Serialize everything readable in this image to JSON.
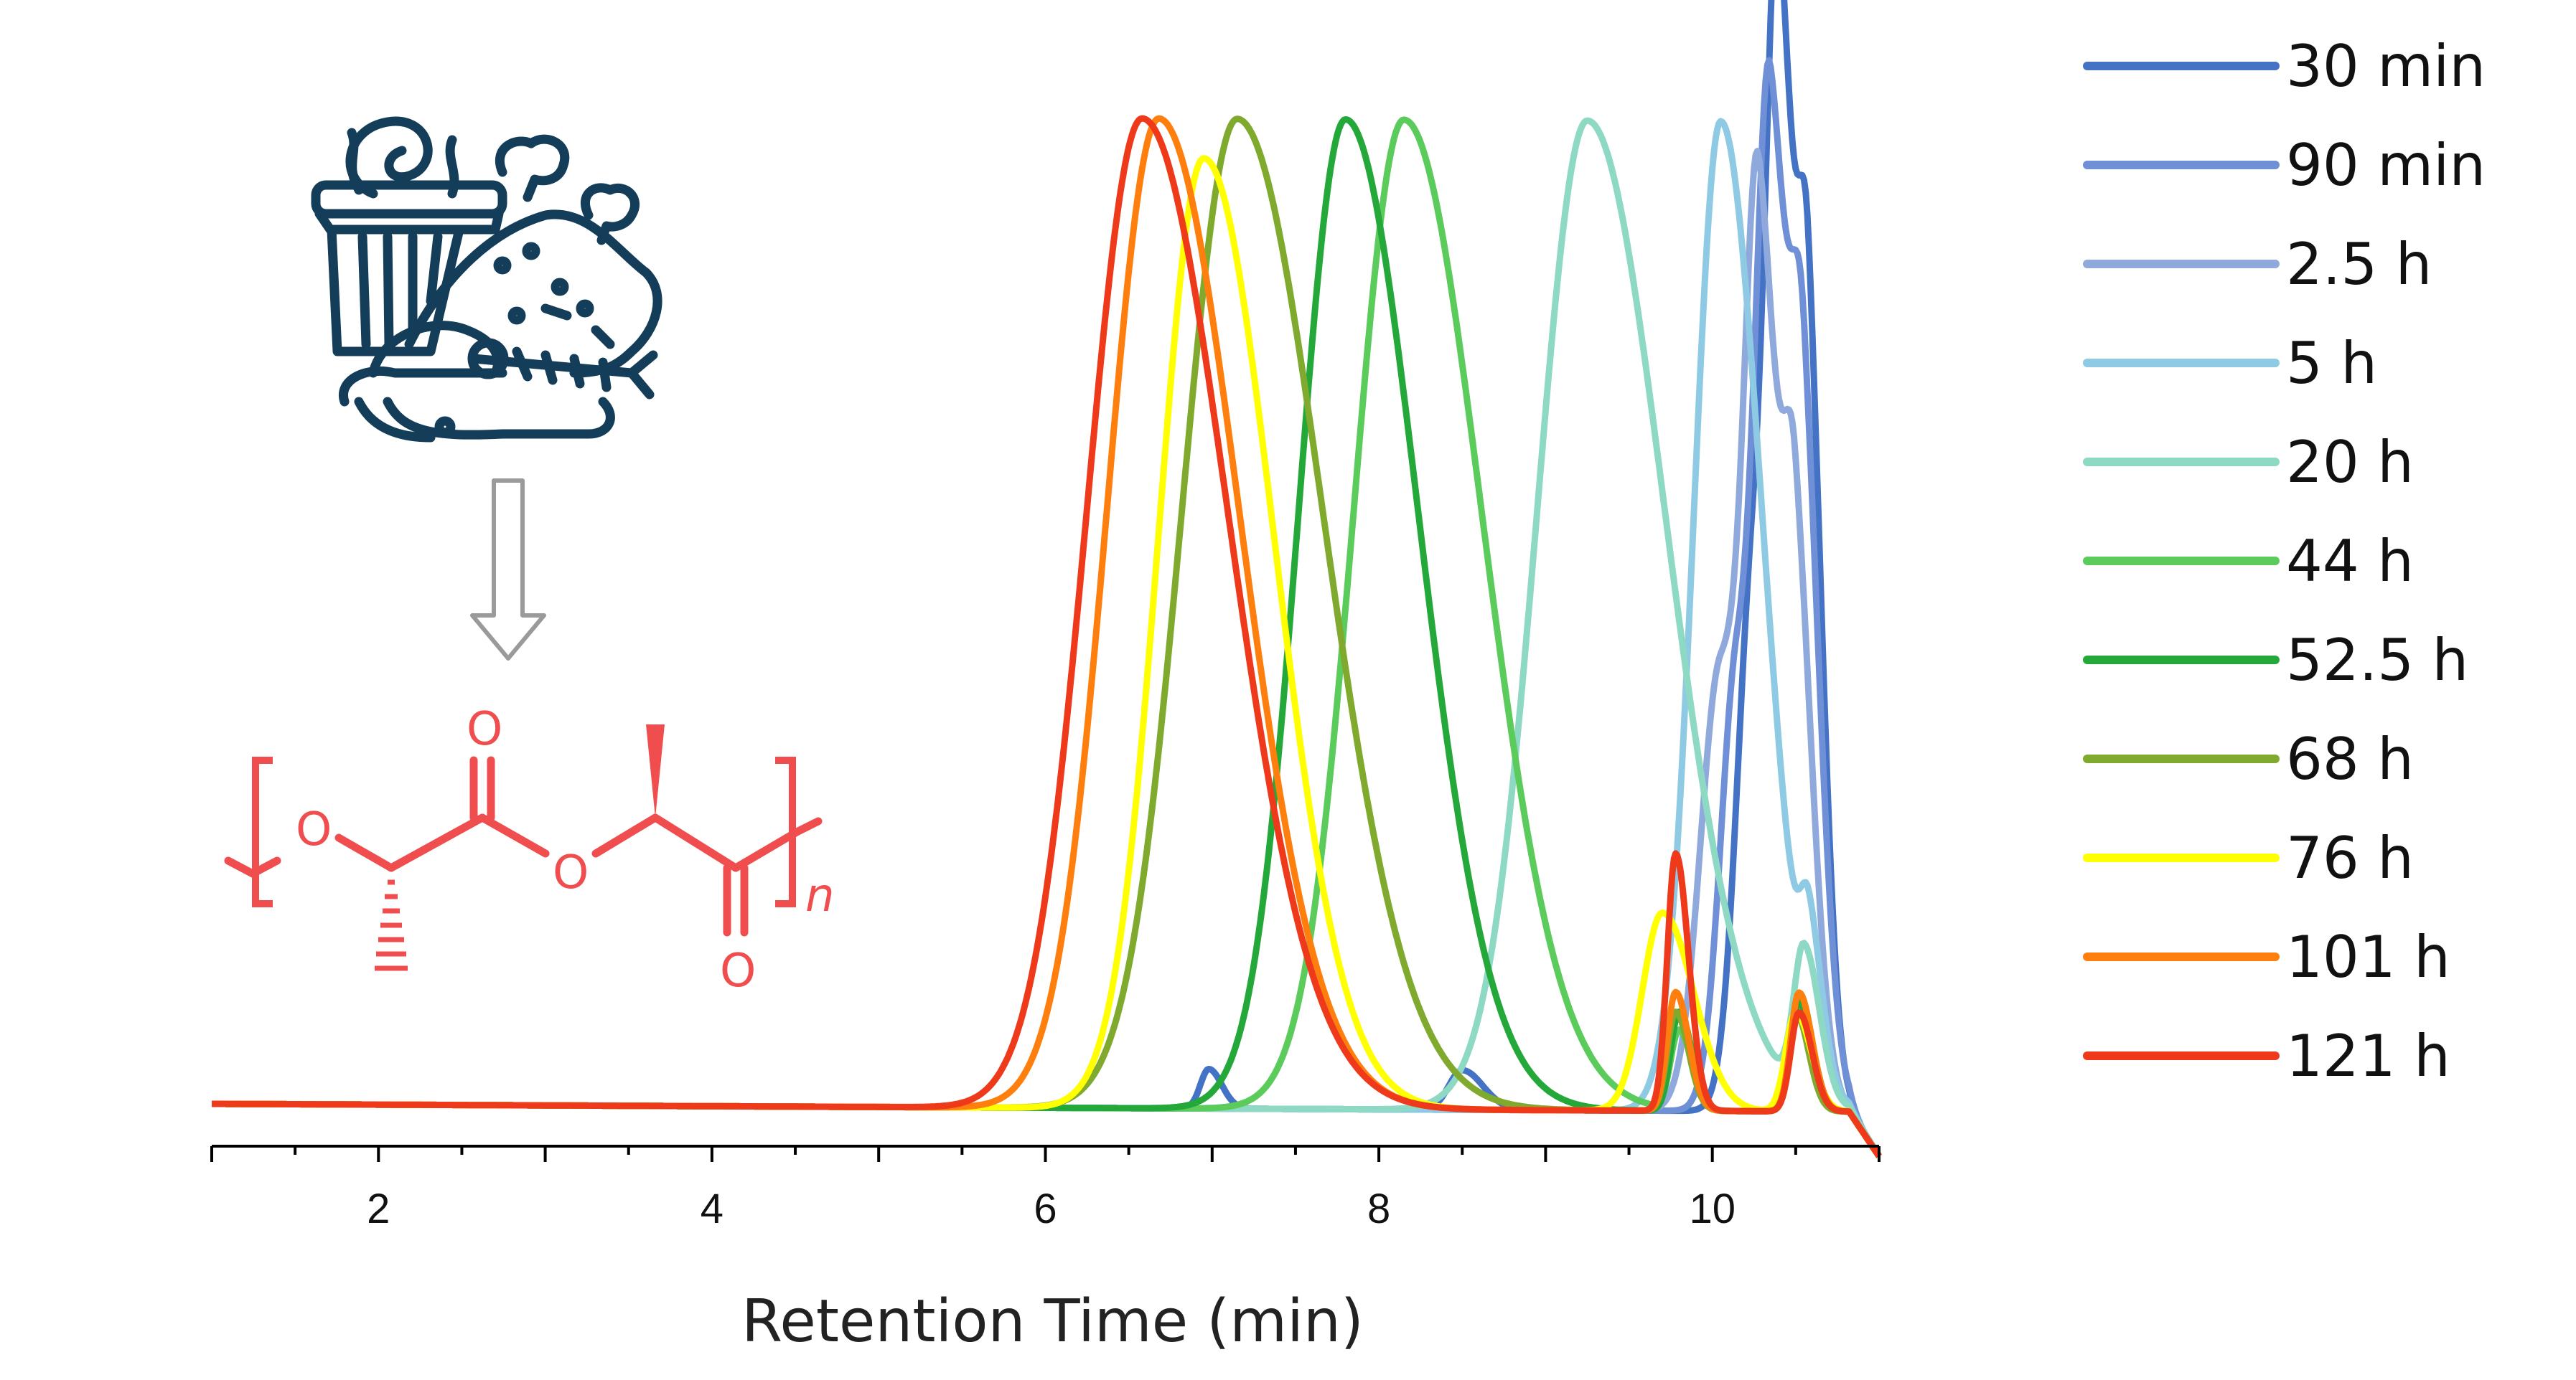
{
  "chart_data": {
    "type": "line",
    "title": "",
    "xlabel": "Retention Time (min)",
    "ylabel": "",
    "xlim": [
      1,
      11
    ],
    "ylim": [
      -0.04,
      1.05
    ],
    "x_ticks": [
      2,
      4,
      6,
      8,
      10
    ],
    "grid": false,
    "legend_position": "right",
    "series": [
      {
        "name": "30 min",
        "color": "#4472C4",
        "baseline": 0.0,
        "tail": 0.41,
        "peaks": [
          [
            6.98,
            0.04,
            0.05
          ],
          [
            8.5,
            0.04,
            0.08
          ],
          [
            10.25,
            0.55,
            0.1
          ],
          [
            10.4,
            0.85,
            0.07
          ],
          [
            10.58,
            0.6,
            0.06
          ]
        ]
      },
      {
        "name": "90 min",
        "color": "#6F8FD6",
        "baseline": 0.0,
        "tail": 0.37,
        "peaks": [
          [
            10.15,
            0.45,
            0.1
          ],
          [
            10.35,
            0.85,
            0.08
          ],
          [
            10.55,
            0.55,
            0.07
          ]
        ]
      },
      {
        "name": "2.5 h",
        "color": "#8FA9DC",
        "baseline": 0.0,
        "tail": 0.34,
        "peaks": [
          [
            10.05,
            0.45,
            0.12
          ],
          [
            10.28,
            0.75,
            0.08
          ],
          [
            10.5,
            0.48,
            0.07
          ]
        ]
      },
      {
        "name": "5 h",
        "color": "#8ECAE3",
        "baseline": 0.0,
        "tail": 0.16,
        "peaks": [
          [
            10.05,
            1.0,
            0.16
          ],
          [
            10.58,
            0.12,
            0.05
          ]
        ]
      },
      {
        "name": "20 h",
        "color": "#8ED9C4",
        "baseline": 0.0,
        "tail": 0.02,
        "peaks": [
          [
            9.25,
            1.0,
            0.3
          ],
          [
            10.55,
            0.15,
            0.06
          ]
        ]
      },
      {
        "name": "44 h",
        "color": "#5BCB5B",
        "baseline": 0.0,
        "tail": 0.0,
        "peaks": [
          [
            8.15,
            1.0,
            0.3
          ],
          [
            9.8,
            0.08,
            0.05
          ],
          [
            10.52,
            0.12,
            0.05
          ]
        ]
      },
      {
        "name": "52.5 h",
        "color": "#25A83A",
        "baseline": 0.0,
        "tail": 0.0,
        "peaks": [
          [
            7.8,
            1.0,
            0.28
          ],
          [
            9.8,
            0.1,
            0.05
          ],
          [
            10.52,
            0.11,
            0.05
          ]
        ]
      },
      {
        "name": "68 h",
        "color": "#7FAA2E",
        "baseline": 0.0,
        "tail": 0.0,
        "peaks": [
          [
            7.15,
            1.0,
            0.33
          ],
          [
            9.78,
            0.1,
            0.05
          ],
          [
            10.5,
            0.1,
            0.05
          ]
        ]
      },
      {
        "name": "76 h",
        "color": "#FFFF00",
        "baseline": 0.0,
        "tail": 0.0,
        "peaks": [
          [
            6.95,
            0.96,
            0.27
          ],
          [
            9.7,
            0.2,
            0.12
          ],
          [
            10.5,
            0.1,
            0.06
          ]
        ]
      },
      {
        "name": "101 h",
        "color": "#FF7F0E",
        "baseline": 0.0,
        "tail": 0.0,
        "peaks": [
          [
            6.68,
            1.0,
            0.31
          ],
          [
            9.78,
            0.12,
            0.05
          ],
          [
            10.52,
            0.12,
            0.05
          ]
        ]
      },
      {
        "name": "121 h",
        "color": "#EE3A1A",
        "baseline": 0.0,
        "tail": 0.0,
        "peaks": [
          [
            6.58,
            1.0,
            0.33
          ],
          [
            9.78,
            0.26,
            0.05
          ],
          [
            10.52,
            0.1,
            0.05
          ]
        ]
      }
    ]
  },
  "structure": {
    "left_bracket_label": "[",
    "right_bracket_label": "]",
    "oxygen_label": "O",
    "repeat_label": "n",
    "color": "#F04E4E"
  },
  "icon": {
    "waste_icon": "food-waste-bin-icon",
    "arrow_icon": "down-arrow-icon",
    "icon_color": "#143D59",
    "arrow_color": "#9A9A9A"
  }
}
